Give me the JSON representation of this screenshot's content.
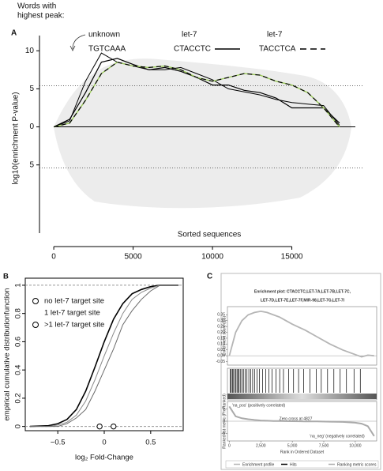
{
  "chart_data": [
    {
      "type": "line",
      "panel_label": "A",
      "legend_title": [
        "Words with",
        "highest peak:"
      ],
      "x_label": "Sorted sequences",
      "y_label": "log10(enrichment P-value)",
      "x": [
        0,
        1000,
        2000,
        3000,
        4000,
        5000,
        6000,
        7000,
        8000,
        9000,
        10000,
        11000,
        12000,
        13000,
        14000,
        15000,
        16000,
        17000,
        18000
      ],
      "series": [
        {
          "group": "unknown",
          "name": "TGTCAAA",
          "color": "#000000",
          "values": [
            0,
            0.8,
            6,
            9.7,
            8.5,
            8,
            7.5,
            7.5,
            7.8,
            7,
            6.2,
            5,
            4.6,
            4.2,
            3.6,
            3.2,
            3,
            2.8,
            0.2
          ]
        },
        {
          "group": "let-7",
          "name": "CTACCTC",
          "color": "#000000",
          "values": [
            0,
            1,
            4.5,
            8.5,
            9,
            8.2,
            7.5,
            7.8,
            7.3,
            6.5,
            5.5,
            5.5,
            4.8,
            4.5,
            3.8,
            2.5,
            2.5,
            2.5,
            0.5
          ]
        },
        {
          "group": "let-7",
          "name": "TACCTCA",
          "color": "#000000",
          "dashed": true,
          "gap_color": "#9ccc5a",
          "values": [
            0,
            0.5,
            3.5,
            7,
            8.5,
            8,
            7.8,
            8,
            7.5,
            6.5,
            6,
            6.5,
            7,
            6.8,
            6,
            5.5,
            4.5,
            2.5,
            0
          ]
        }
      ],
      "threshold_lines": [
        5.4,
        -5.4
      ],
      "xlim": [
        -900,
        19500
      ],
      "ylim": [
        -15,
        12
      ],
      "xticks": [
        0,
        5000,
        10000,
        15000
      ],
      "yticks": [
        10,
        5,
        0,
        {
          "value": -5,
          "label": "5"
        }
      ]
    },
    {
      "type": "ecdf",
      "panel_label": "B",
      "x_label": "log₂ Fold-Change",
      "y_label": "empirical cumulative distributionfunction",
      "x": [
        -0.8,
        -0.6,
        -0.5,
        -0.4,
        -0.3,
        -0.2,
        -0.1,
        0,
        0.1,
        0.2,
        0.3,
        0.4,
        0.5,
        0.6,
        0.8
      ],
      "series": [
        {
          "name": "no let-7 target site",
          "color": "#000000",
          "values": [
            0,
            0.005,
            0.02,
            0.05,
            0.12,
            0.25,
            0.42,
            0.6,
            0.76,
            0.87,
            0.94,
            0.97,
            0.99,
            1,
            1
          ]
        },
        {
          "name": "1 let-7 target site",
          "color": "#8a8a8a",
          "values": [
            0,
            0,
            0.01,
            0.03,
            0.08,
            0.18,
            0.33,
            0.5,
            0.66,
            0.8,
            0.9,
            0.95,
            0.98,
            1,
            1
          ]
        },
        {
          "name": ">1 let-7 target site",
          "color": "#6a6a6a",
          "values": [
            0,
            0,
            0,
            0.02,
            0.06,
            0.12,
            0.25,
            0.4,
            0.55,
            0.72,
            0.82,
            0.9,
            0.96,
            1,
            1
          ]
        }
      ],
      "medians": [
        -0.05,
        0.1
      ],
      "xlim": [
        -0.85,
        0.85
      ],
      "ylim": [
        -0.03,
        1.05
      ],
      "xticks": [
        {
          "value": -0.5,
          "label": "−0.5"
        },
        0,
        0.5
      ],
      "yticks": [
        0,
        0.2,
        0.4,
        0.6,
        0.8,
        1
      ]
    },
    {
      "type": "gsea",
      "panel_label": "C",
      "title": [
        "Enrichment plot: CTACCTC,LET-7A,LET-7B,LET-7C,",
        "LET-7D,LET-7E,LET-7F,MIR-98,LET-7G,LET-7I"
      ],
      "es_label": "Enrichment score (ES)",
      "metric_label": "Ranked list metric (PreRanked)",
      "x_label": "Rank in Ordered Dataset",
      "x": [
        0,
        500,
        1000,
        1500,
        2000,
        2500,
        3000,
        3500,
        4000,
        4500,
        5000,
        6000,
        7000,
        8000,
        9000,
        10000,
        10500,
        11000,
        11500
      ],
      "es_values": [
        0,
        0.2,
        0.3,
        0.35,
        0.37,
        0.38,
        0.37,
        0.35,
        0.33,
        0.3,
        0.27,
        0.22,
        0.16,
        0.1,
        0.05,
        0.01,
        -0.01,
        0.005,
        0
      ],
      "es_color": "#b5b5b5",
      "metric_values": [
        6,
        2,
        1.2,
        0.8,
        0.5,
        0.3,
        0.2,
        0.1,
        0.05,
        0.02,
        0,
        -0.05,
        -0.1,
        -0.2,
        -0.3,
        -0.6,
        -1,
        -2,
        -6
      ],
      "hits": [
        60,
        150,
        240,
        300,
        420,
        520,
        610,
        700,
        780,
        900,
        1000,
        1120,
        1250,
        1400,
        1550,
        1700,
        1850,
        2000,
        2200,
        2400,
        2650,
        2900,
        3150,
        3400,
        3700,
        4000,
        4300,
        4700,
        5100,
        5500,
        5900,
        6400,
        6900,
        7300,
        7800,
        8300,
        8800,
        9300,
        9900,
        10400
      ],
      "annotations": [
        "'na_pos' (positively correlated)",
        "Zero cross at 4827",
        "'na_neg' (negatively correlated)"
      ],
      "legend": [
        "Enrichment profile",
        "Hits",
        "Ranking metric scores"
      ],
      "xlim": [
        -150,
        11700
      ],
      "es_ylim": [
        -0.08,
        0.42
      ],
      "metric_ylim": [
        -8,
        8
      ],
      "xticks": [
        0,
        {
          "value": 2500,
          "label": "2,500"
        },
        {
          "value": 5000,
          "label": "5,000"
        },
        {
          "value": 7500,
          "label": "7,500"
        },
        {
          "value": 10000,
          "label": "10,000"
        }
      ],
      "es_yticks": [
        -0.05,
        {
          "value": 0,
          "label": "0.00"
        },
        0.05,
        {
          "value": 0.1,
          "label": "0.10"
        },
        0.15,
        {
          "value": 0.2,
          "label": "0.20"
        },
        0.25,
        {
          "value": 0.3,
          "label": "0.30"
        },
        0.35
      ],
      "metric_yticks": [
        5,
        0,
        -5
      ]
    }
  ]
}
